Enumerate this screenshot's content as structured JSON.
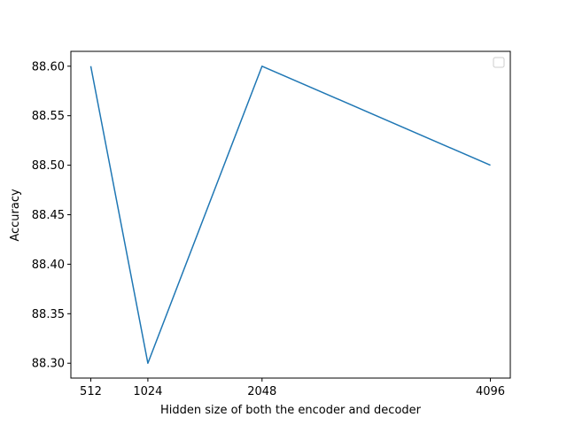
{
  "chart_data": {
    "type": "line",
    "title": "",
    "xlabel": "Hidden size of both the encoder and decoder",
    "ylabel": "Accuracy",
    "x": [
      512,
      1024,
      2048,
      4096
    ],
    "series": [
      {
        "values": [
          88.6,
          88.3,
          88.6,
          88.5
        ],
        "color": "#1f77b4"
      }
    ],
    "xticks": [
      512,
      1024,
      2048,
      4096
    ],
    "xtick_labels": [
      "512",
      "1024",
      "2048",
      "4096"
    ],
    "yticks": [
      88.3,
      88.35,
      88.4,
      88.45,
      88.5,
      88.55,
      88.6
    ],
    "ytick_labels": [
      "88.30",
      "88.35",
      "88.40",
      "88.45",
      "88.50",
      "88.55",
      "88.60"
    ],
    "xlim": [
      333.44,
      4274.56
    ],
    "ylim": [
      88.285,
      88.615
    ],
    "grid": false,
    "legend": {
      "placement": "upper right",
      "entries": []
    }
  }
}
